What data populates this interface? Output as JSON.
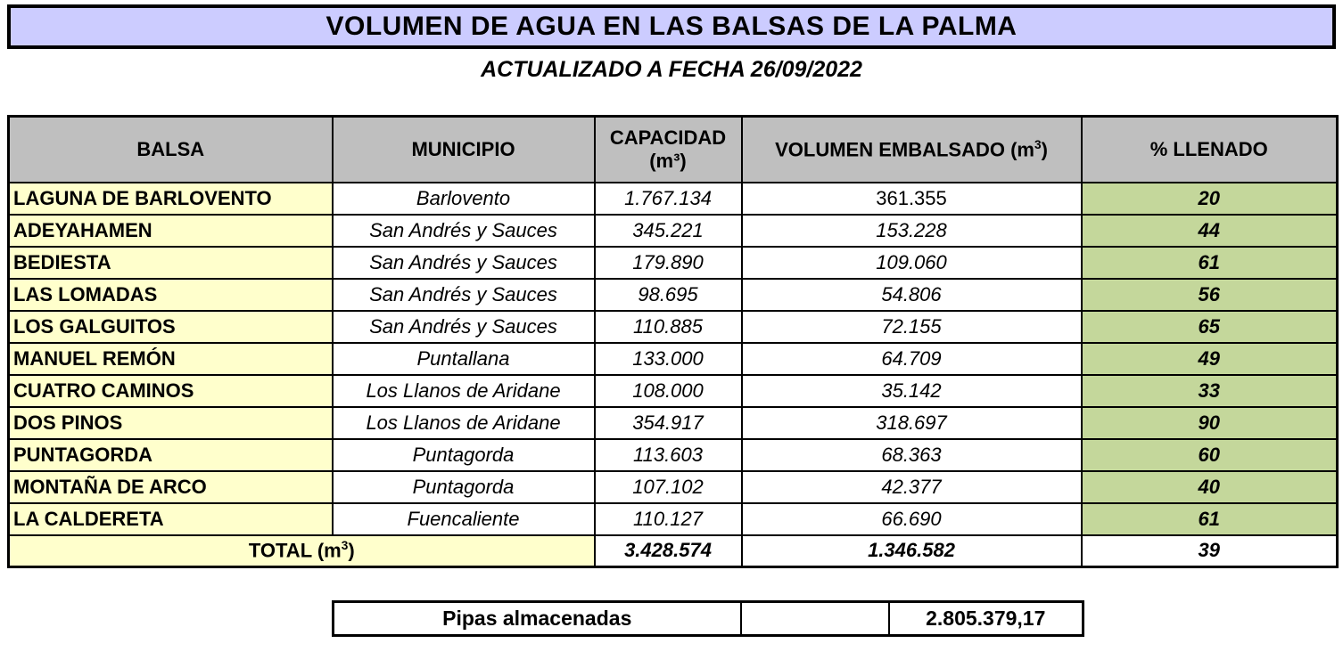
{
  "title": "VOLUMEN DE AGUA EN LAS BALSAS DE LA PALMA",
  "subtitle": "ACTUALIZADO A FECHA 26/09/2022",
  "colors": {
    "title_bg": "#CCCCFF",
    "header_bg": "#BFBFBF",
    "balsa_col_bg": "#FFFFCC",
    "llenado_col_bg": "#C4D79B",
    "border": "#000000"
  },
  "table": {
    "headers": {
      "balsa": "BALSA",
      "capacidad_line1": "CAPACIDAD",
      "capacidad_line2": "(m³)",
      "municipio": "MUNICIPIO",
      "volumen_prefix": "VOLUMEN EMBALSADO (m",
      "volumen_sup": "3",
      "volumen_suffix": ")",
      "llenado": "% LLENADO"
    },
    "rows": [
      {
        "balsa": "LAGUNA DE BARLOVENTO",
        "municipio": "Barlovento",
        "capacidad": "1.767.134",
        "volumen": "361.355",
        "llenado": "20"
      },
      {
        "balsa": "ADEYAHAMEN",
        "municipio": "San Andrés y Sauces",
        "capacidad": "345.221",
        "volumen": "153.228",
        "llenado": "44"
      },
      {
        "balsa": "BEDIESTA",
        "municipio": "San Andrés y Sauces",
        "capacidad": "179.890",
        "volumen": "109.060",
        "llenado": "61"
      },
      {
        "balsa": "LAS LOMADAS",
        "municipio": "San Andrés y Sauces",
        "capacidad": "98.695",
        "volumen": "54.806",
        "llenado": "56"
      },
      {
        "balsa": "LOS GALGUITOS",
        "municipio": "San Andrés y Sauces",
        "capacidad": "110.885",
        "volumen": "72.155",
        "llenado": "65"
      },
      {
        "balsa": "MANUEL REMÓN",
        "municipio": "Puntallana",
        "capacidad": "133.000",
        "volumen": "64.709",
        "llenado": "49"
      },
      {
        "balsa": "CUATRO CAMINOS",
        "municipio": "Los Llanos de Aridane",
        "capacidad": "108.000",
        "volumen": "35.142",
        "llenado": "33"
      },
      {
        "balsa": "DOS PINOS",
        "municipio": "Los Llanos de Aridane",
        "capacidad": "354.917",
        "volumen": "318.697",
        "llenado": "90"
      },
      {
        "balsa": "PUNTAGORDA",
        "municipio": "Puntagorda",
        "capacidad": "113.603",
        "volumen": "68.363",
        "llenado": "60"
      },
      {
        "balsa": "MONTAÑA DE ARCO",
        "municipio": "Puntagorda",
        "capacidad": "107.102",
        "volumen": "42.377",
        "llenado": "40"
      },
      {
        "balsa": "LA CALDERETA",
        "municipio": "Fuencaliente",
        "capacidad": "110.127",
        "volumen": "66.690",
        "llenado": "61"
      }
    ],
    "total": {
      "label_prefix": "TOTAL (m",
      "label_sup": "3",
      "label_suffix": ")",
      "capacidad": "3.428.574",
      "volumen": "1.346.582",
      "llenado": "39"
    }
  },
  "pipas": {
    "label": "Pipas almacenadas",
    "value": "2.805.379,17"
  }
}
